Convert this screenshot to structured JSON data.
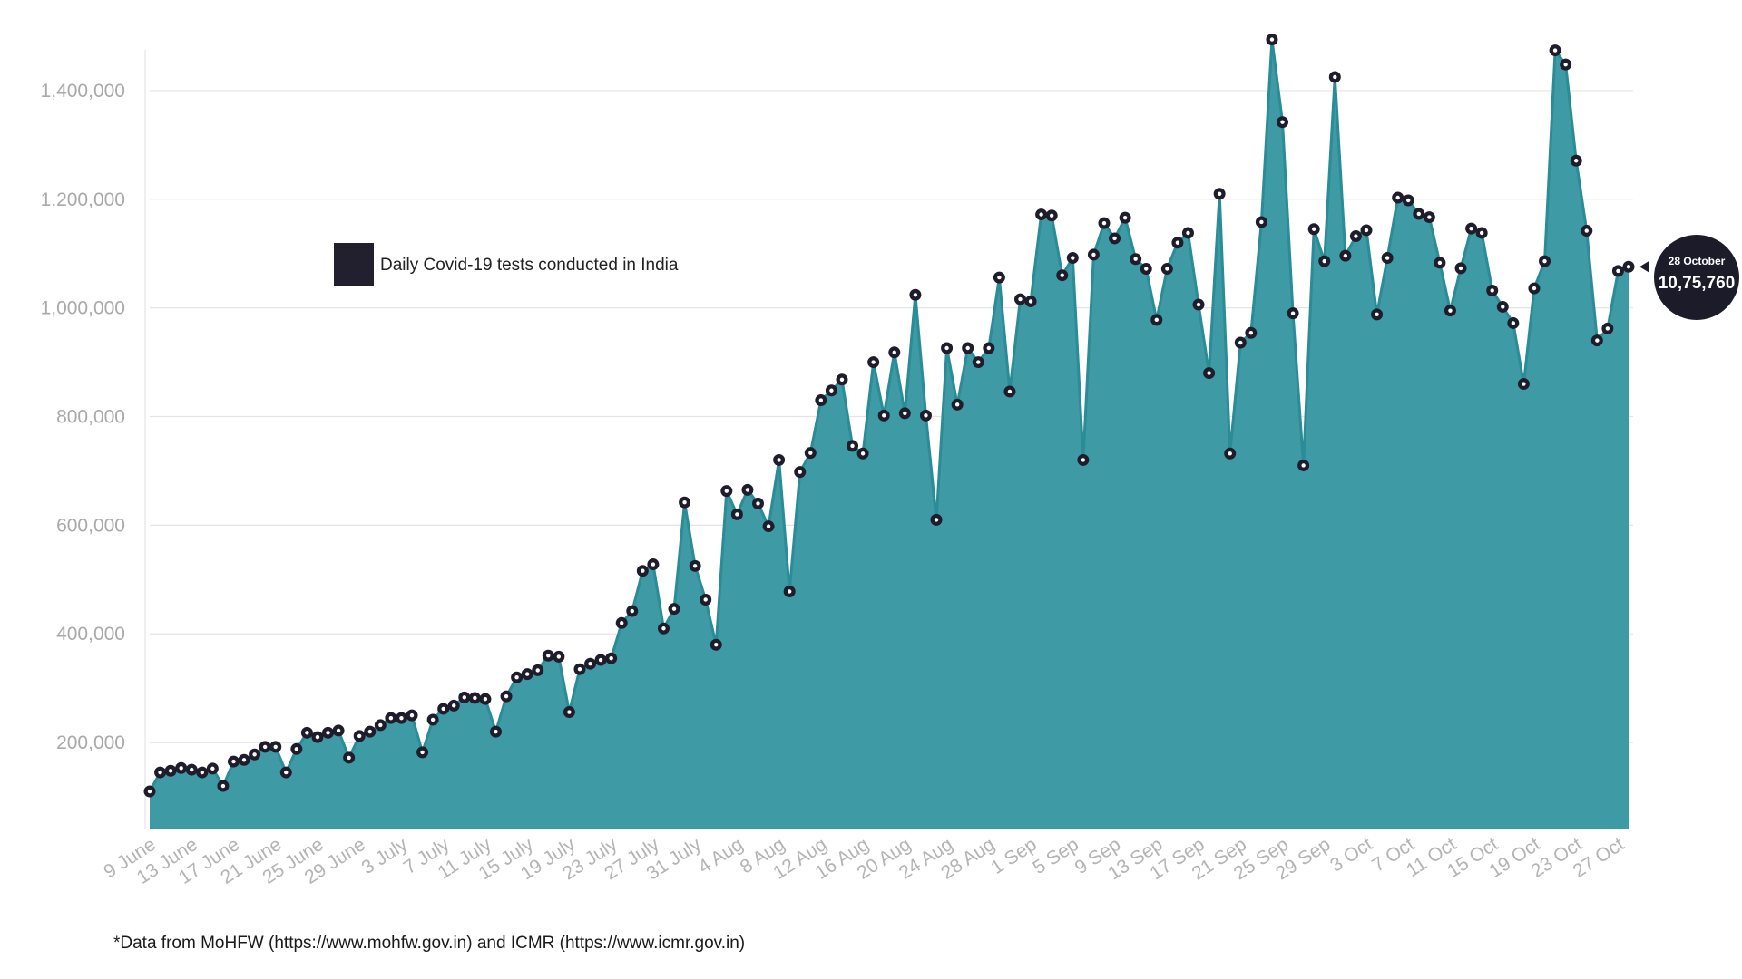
{
  "colors": {
    "area_fill": "#3e9aa4",
    "line": "#2a8c96",
    "marker_fill": "#1f1d2b",
    "marker_ring": "#ffffff",
    "grid": "#e4e4e4",
    "legend_swatch": "#22202e",
    "callout_bg": "#1c1b29"
  },
  "footnote": "*Data from MoHFW (https://www.mohfw.gov.in) and ICMR (https://www.icmr.gov.in)",
  "chart_data": {
    "type": "area",
    "title": "",
    "xlabel": "",
    "ylabel": "",
    "legend": {
      "label": "Daily Covid-19 tests conducted in India",
      "placement": "upper-left"
    },
    "ylim": [
      40000,
      1500000
    ],
    "yticks": [
      200000,
      400000,
      600000,
      800000,
      1000000,
      1200000,
      1400000
    ],
    "ytick_labels": [
      "200,000",
      "400,000",
      "600,000",
      "800,000",
      "1,000,000",
      "1,200,000",
      "1,400,000"
    ],
    "grid": true,
    "x_start": "2020-06-09",
    "x_end": "2020-10-28",
    "xtick_labels": [
      "9 June",
      "13 June",
      "17 June",
      "21 June",
      "25 June",
      "29 June",
      "3 July",
      "7 July",
      "11 July",
      "15 July",
      "19 July",
      "23 July",
      "27 July",
      "31 July",
      "4 Aug",
      "8 Aug",
      "12 Aug",
      "16 Aug",
      "20 Aug",
      "24 Aug",
      "28 Aug",
      "1 Sep",
      "5 Sep",
      "9 Sep",
      "13 Sep",
      "17 Sep",
      "21 Sep",
      "25 Sep",
      "29 Sep",
      "3 Oct",
      "7 Oct",
      "11 Oct",
      "15 Oct",
      "19 Oct",
      "23 Oct",
      "27 Oct"
    ],
    "series": [
      {
        "name": "Daily Covid-19 tests conducted in India",
        "values": [
          110000,
          145000,
          148000,
          153000,
          150000,
          145000,
          152000,
          120000,
          165000,
          168000,
          178000,
          192000,
          192000,
          145000,
          188000,
          218000,
          210000,
          218000,
          222000,
          172000,
          212000,
          220000,
          232000,
          245000,
          245000,
          250000,
          182000,
          242000,
          262000,
          268000,
          283000,
          282000,
          280000,
          220000,
          285000,
          320000,
          326000,
          333000,
          360000,
          358000,
          256000,
          335000,
          345000,
          352000,
          355000,
          420000,
          442000,
          516000,
          528000,
          410000,
          446000,
          642000,
          525000,
          463000,
          380000,
          663000,
          620000,
          665000,
          640000,
          598000,
          720000,
          478000,
          698000,
          733000,
          830000,
          848000,
          868000,
          746000,
          732000,
          900000,
          802000,
          918000,
          806000,
          1024000,
          802000,
          610000,
          926000,
          822000,
          926000,
          900000,
          926000,
          1056000,
          846000,
          1016000,
          1012000,
          1172000,
          1170000,
          1060000,
          1092000,
          720000,
          1098000,
          1156000,
          1128000,
          1166000,
          1090000,
          1072000,
          978000,
          1072000,
          1120000,
          1138000,
          1006000,
          880000,
          1210000,
          732000,
          936000,
          954000,
          1158000,
          1494000,
          1342000,
          990000,
          710000,
          1145000,
          1086000,
          1425000,
          1096000,
          1132000,
          1143000,
          988000,
          1092000,
          1203000,
          1198000,
          1173000,
          1167000,
          1083000,
          995000,
          1073000,
          1146000,
          1138000,
          1032000,
          1002000,
          972000,
          860000,
          1036000,
          1086000,
          1474000,
          1448000,
          1271000,
          1142000,
          940000,
          962000,
          1068000,
          1075760
        ]
      }
    ],
    "callout": {
      "date": "28 October",
      "value": "10,75,760"
    }
  }
}
